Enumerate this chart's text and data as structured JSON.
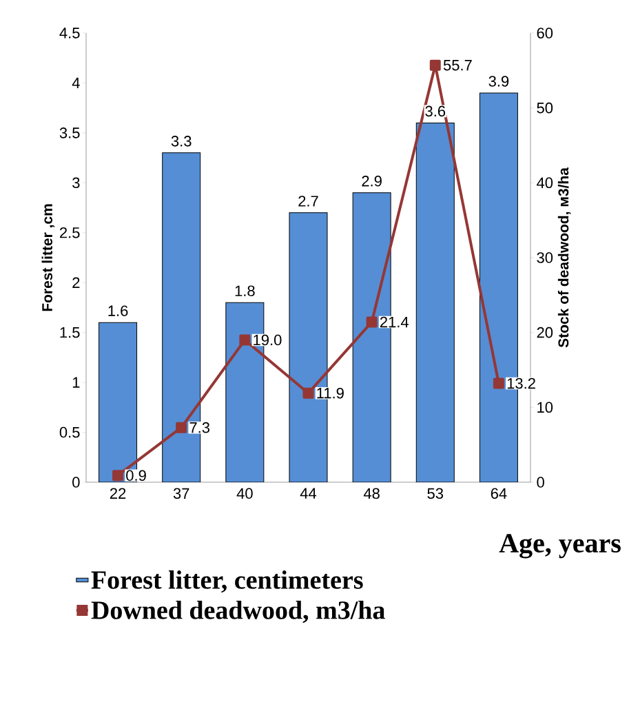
{
  "chart_data": {
    "type": "bar",
    "categories": [
      "22",
      "37",
      "40",
      "44",
      "48",
      "53",
      "64"
    ],
    "xlabel": "Age, years",
    "ylabel": "Forest litter ,cm",
    "y2label": "Stock of deadwood, м3/ha",
    "ylim": [
      0,
      4.5
    ],
    "yticks": [
      0,
      0.5,
      1,
      1.5,
      2,
      2.5,
      3,
      3.5,
      4,
      4.5
    ],
    "y2lim": [
      0,
      60
    ],
    "y2ticks": [
      0,
      10,
      20,
      30,
      40,
      50,
      60
    ],
    "legend": "bottom",
    "marker": "square",
    "series": [
      {
        "name": "Forest litter, centimeters",
        "color": "#558ed5",
        "values": [
          1.6,
          3.3,
          1.8,
          2.7,
          2.9,
          3.6,
          3.9
        ],
        "value_labels": [
          "1.6",
          "3.3",
          "1.8",
          "2.7",
          "2.9",
          "3.6",
          "3.9"
        ]
      },
      {
        "name": "Downed deadwood, m3/ha",
        "type": "line",
        "axis": "y2",
        "color": "#953735",
        "values": [
          0.9,
          7.3,
          19.0,
          11.9,
          21.4,
          55.7,
          13.2
        ],
        "value_labels": [
          "0.9",
          "7.3",
          "19.0",
          "11.9",
          "21.4",
          "55.7",
          "13.2"
        ]
      }
    ]
  }
}
